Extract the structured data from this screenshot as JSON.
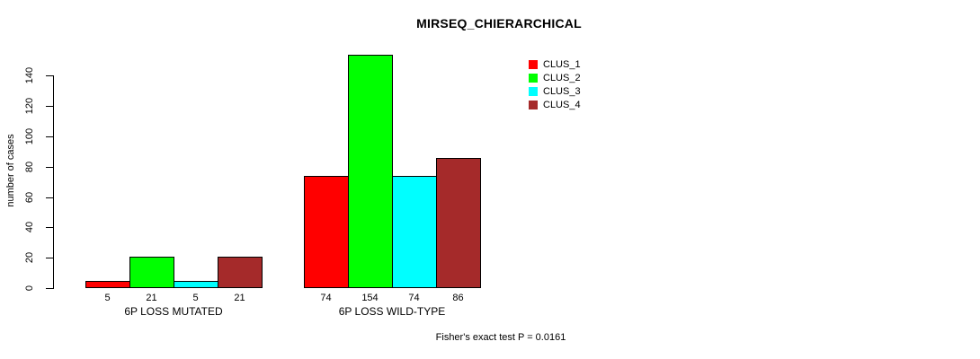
{
  "chart_data": {
    "type": "bar",
    "title": "MIRSEQ_CHIERARCHICAL",
    "ylabel": "number of cases",
    "xlabel": "",
    "categories": [
      "6P LOSS MUTATED",
      "6P LOSS WILD-TYPE"
    ],
    "series": [
      {
        "name": "CLUS_1",
        "color": "#FF0000",
        "values": [
          5,
          74
        ]
      },
      {
        "name": "CLUS_2",
        "color": "#00FF00",
        "values": [
          21,
          154
        ]
      },
      {
        "name": "CLUS_3",
        "color": "#00FFFF",
        "values": [
          5,
          74
        ]
      },
      {
        "name": "CLUS_4",
        "color": "#A52A2A",
        "values": [
          21,
          86
        ]
      }
    ],
    "bar_value_labels_shown": true,
    "yticks": [
      0,
      20,
      40,
      60,
      80,
      100,
      120,
      140
    ],
    "ylim": [
      0,
      154
    ],
    "grid": false,
    "legend_position": "top-right",
    "annotation": "Fisher's exact test P = 0.0161",
    "bar_border_color": "#000000",
    "background_color": "#FFFFFF"
  }
}
